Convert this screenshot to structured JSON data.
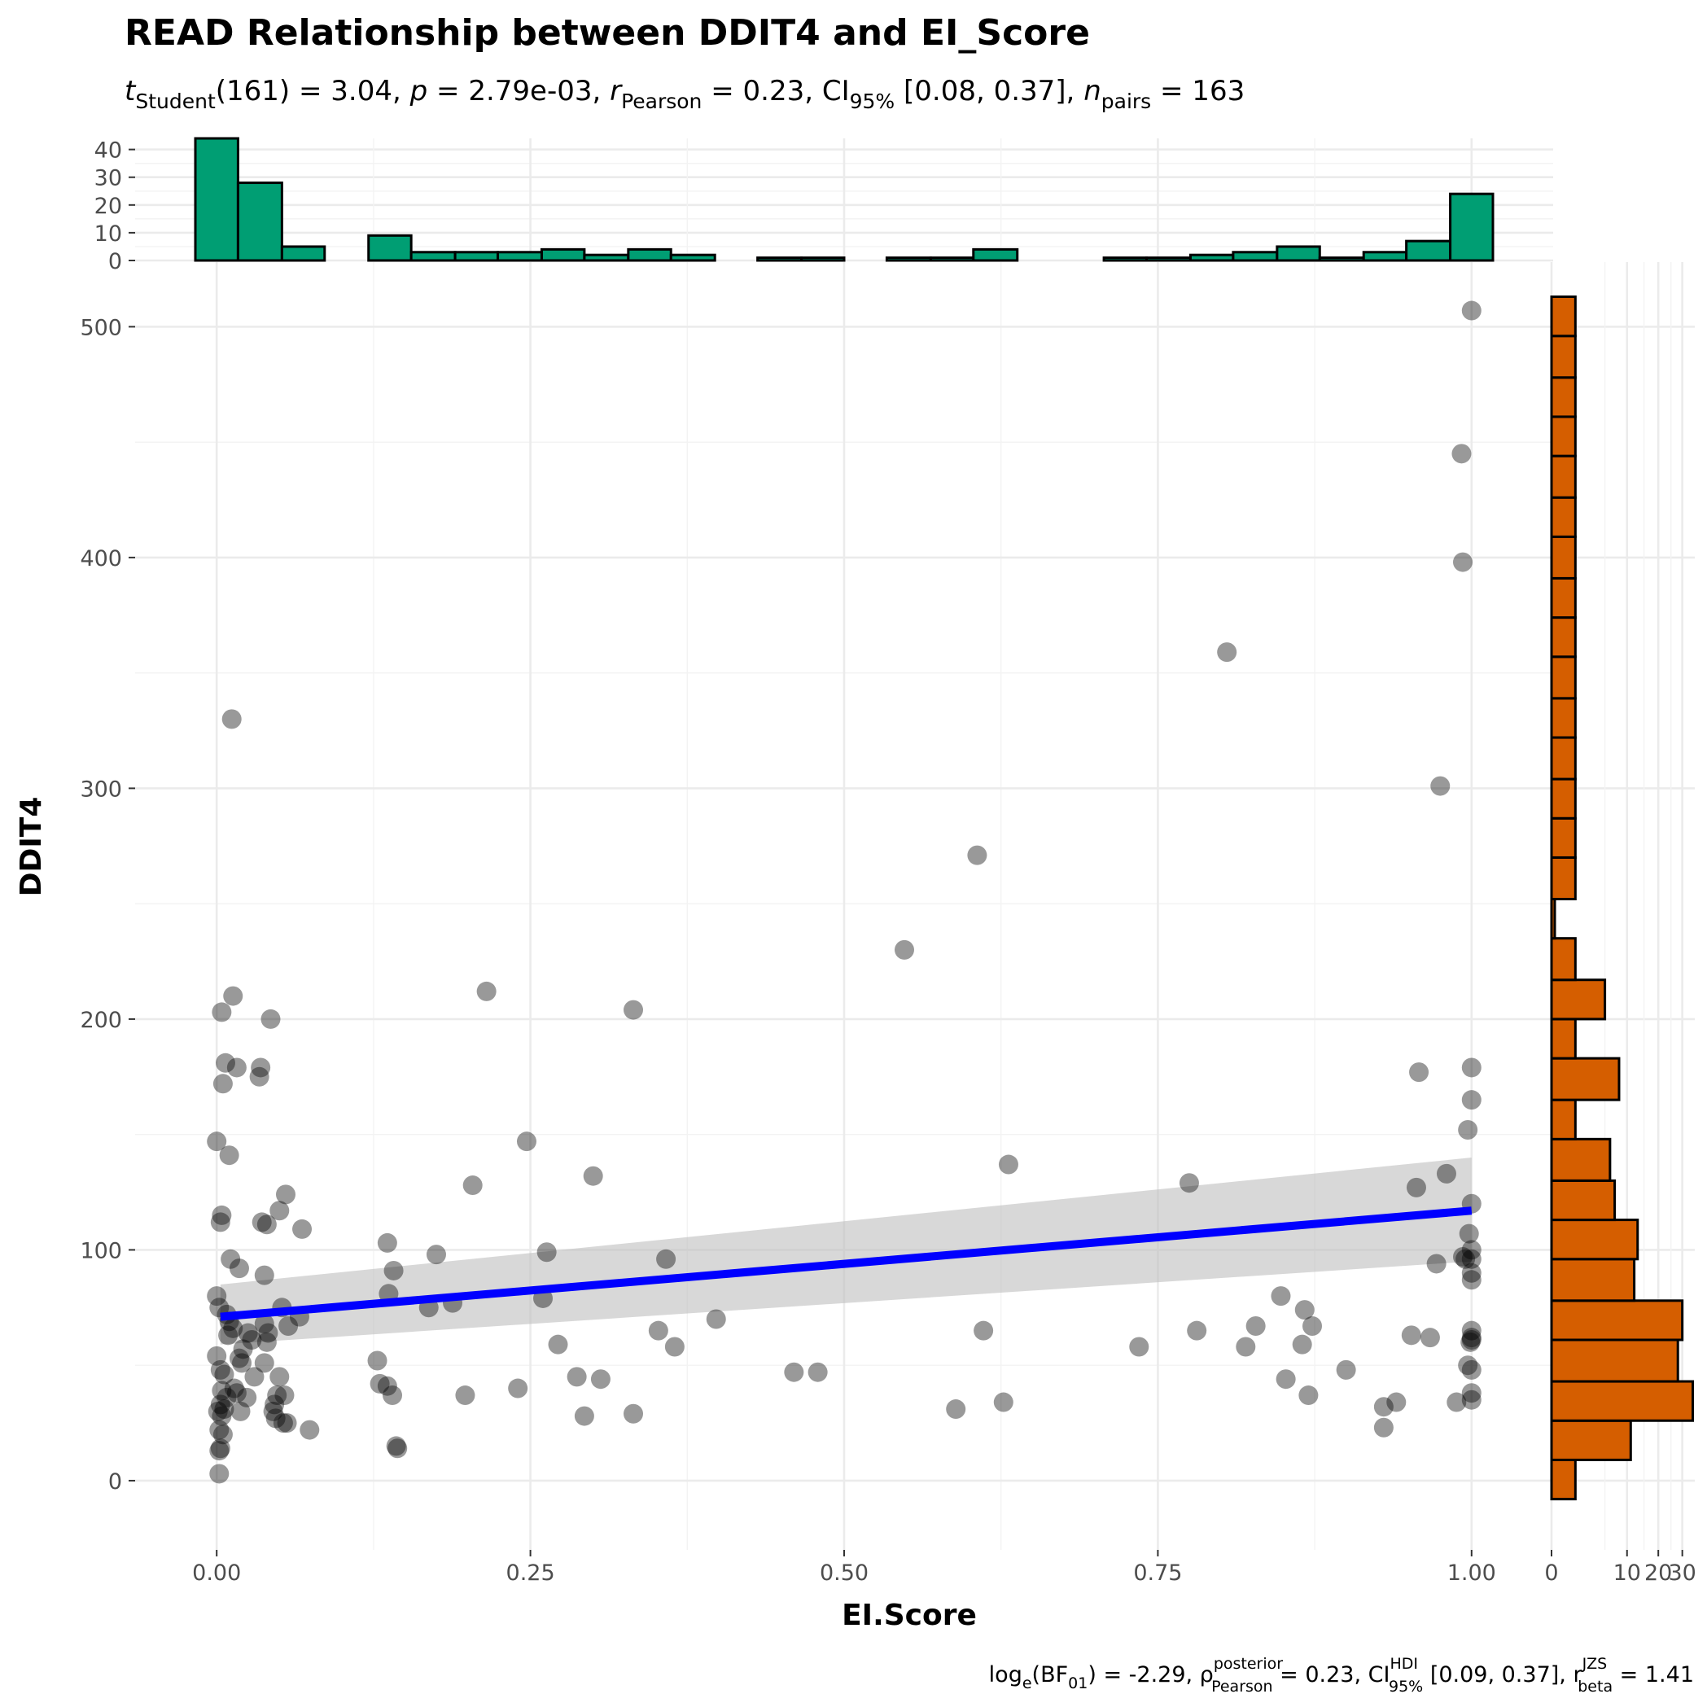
{
  "colors": {
    "points": "#000000",
    "fit_line": "#0000ff",
    "ci_band": "#bebebe",
    "x_hist": "#009e73",
    "y_hist": "#d55e00"
  },
  "chart_data": {
    "type": "scatter",
    "title": "READ Relationship between DDIT4 and EI_Score",
    "subtitle": {
      "t": "t",
      "t_sub": "Student",
      "t_val": "(161) = 3.04, ",
      "p": "p",
      "p_val": " = 2.79e-03, ",
      "r": "r",
      "r_sub": "Pearson",
      "r_val": " = 0.23, CI",
      "ci_sub": "95%",
      "ci_val": " [0.08, 0.37], ",
      "n": "n",
      "n_sub": "pairs",
      "n_val": " = 163"
    },
    "caption": {
      "a": "log",
      "a_sub": "e",
      "b": "(BF",
      "b_sub": "01",
      "c": ") = -2.29, ρ",
      "c_sup": "posterior",
      "c_sub": "Pearson",
      "d": " = 0.23, CI",
      "d_sup": "HDI",
      "d_sub": "95%",
      "e": " [0.09, 0.37], r",
      "e_sup": "JZS",
      "e_sub": "beta",
      "f": " = 1.41"
    },
    "xlabel": "EI.Score",
    "ylabel": "DDIT4",
    "xlim": [
      -0.065,
      1.065
    ],
    "ylim": [
      -30,
      528
    ],
    "x_ticks": [
      0,
      0.25,
      0.5,
      0.75,
      1
    ],
    "x_tick_labels": [
      "0.00",
      "0.25",
      "0.50",
      "0.75",
      "1.00"
    ],
    "y_ticks": [
      0,
      100,
      200,
      300,
      400,
      500
    ],
    "y_tick_labels": [
      "0",
      "100",
      "200",
      "300",
      "400",
      "500"
    ],
    "grid": true,
    "regression": {
      "x0": 0.003,
      "y0": 71,
      "x1": 1.0,
      "y1": 117,
      "ci_lower_start": 59,
      "ci_upper_start": 85,
      "ci_lower_end": 95,
      "ci_upper_end": 140
    },
    "points": [
      [
        0.0,
        147
      ],
      [
        0.004,
        115
      ],
      [
        0.003,
        112
      ],
      [
        0.004,
        203
      ],
      [
        0.005,
        172
      ],
      [
        0.007,
        181
      ],
      [
        0.01,
        141
      ],
      [
        0.012,
        330
      ],
      [
        0.013,
        210
      ],
      [
        0.016,
        179
      ],
      [
        0.011,
        96
      ],
      [
        0.018,
        92
      ],
      [
        0.0,
        80
      ],
      [
        0.002,
        75
      ],
      [
        0.008,
        72
      ],
      [
        0.01,
        69
      ],
      [
        0.013,
        66
      ],
      [
        0.009,
        63
      ],
      [
        0.0,
        54
      ],
      [
        0.003,
        48
      ],
      [
        0.006,
        46
      ],
      [
        0.004,
        39
      ],
      [
        0.008,
        36
      ],
      [
        0.003,
        33
      ],
      [
        0.001,
        30
      ],
      [
        0.004,
        28
      ],
      [
        0.006,
        31
      ],
      [
        0.002,
        22
      ],
      [
        0.005,
        20
      ],
      [
        0.003,
        14
      ],
      [
        0.002,
        13
      ],
      [
        0.002,
        3
      ],
      [
        0.016,
        38
      ],
      [
        0.019,
        30
      ],
      [
        0.014,
        40
      ],
      [
        0.018,
        53
      ],
      [
        0.021,
        57
      ],
      [
        0.025,
        64
      ],
      [
        0.028,
        61
      ],
      [
        0.03,
        45
      ],
      [
        0.024,
        36
      ],
      [
        0.02,
        51
      ],
      [
        0.034,
        175
      ],
      [
        0.035,
        179
      ],
      [
        0.036,
        112
      ],
      [
        0.04,
        111
      ],
      [
        0.038,
        89
      ],
      [
        0.043,
        200
      ],
      [
        0.038,
        68
      ],
      [
        0.041,
        64
      ],
      [
        0.04,
        60
      ],
      [
        0.038,
        51
      ],
      [
        0.045,
        30
      ],
      [
        0.047,
        27
      ],
      [
        0.046,
        33
      ],
      [
        0.048,
        37
      ],
      [
        0.05,
        117
      ],
      [
        0.052,
        75
      ],
      [
        0.05,
        45
      ],
      [
        0.054,
        37
      ],
      [
        0.053,
        25
      ],
      [
        0.055,
        124
      ],
      [
        0.057,
        67
      ],
      [
        0.056,
        25
      ],
      [
        0.066,
        71
      ],
      [
        0.068,
        109
      ],
      [
        0.074,
        22
      ],
      [
        0.128,
        52
      ],
      [
        0.13,
        42
      ],
      [
        0.136,
        103
      ],
      [
        0.137,
        81
      ],
      [
        0.136,
        41
      ],
      [
        0.14,
        37
      ],
      [
        0.141,
        91
      ],
      [
        0.143,
        15
      ],
      [
        0.144,
        14
      ],
      [
        0.169,
        75
      ],
      [
        0.175,
        98
      ],
      [
        0.188,
        77
      ],
      [
        0.198,
        37
      ],
      [
        0.204,
        128
      ],
      [
        0.215,
        212
      ],
      [
        0.24,
        40
      ],
      [
        0.247,
        147
      ],
      [
        0.26,
        79
      ],
      [
        0.263,
        99
      ],
      [
        0.272,
        59
      ],
      [
        0.287,
        45
      ],
      [
        0.293,
        28
      ],
      [
        0.3,
        132
      ],
      [
        0.306,
        44
      ],
      [
        0.332,
        204
      ],
      [
        0.332,
        29
      ],
      [
        0.352,
        65
      ],
      [
        0.358,
        96
      ],
      [
        0.365,
        58
      ],
      [
        0.398,
        70
      ],
      [
        0.46,
        47
      ],
      [
        0.479,
        47
      ],
      [
        0.548,
        230
      ],
      [
        0.589,
        31
      ],
      [
        0.606,
        271
      ],
      [
        0.611,
        65
      ],
      [
        0.627,
        34
      ],
      [
        0.631,
        137
      ],
      [
        0.735,
        58
      ],
      [
        0.775,
        129
      ],
      [
        0.781,
        65
      ],
      [
        0.805,
        359
      ],
      [
        0.82,
        58
      ],
      [
        0.828,
        67
      ],
      [
        0.848,
        80
      ],
      [
        0.852,
        44
      ],
      [
        0.865,
        59
      ],
      [
        0.867,
        74
      ],
      [
        0.87,
        37
      ],
      [
        0.873,
        67
      ],
      [
        0.9,
        48
      ],
      [
        0.93,
        32
      ],
      [
        0.93,
        23
      ],
      [
        0.94,
        34
      ],
      [
        0.952,
        63
      ],
      [
        0.956,
        127
      ],
      [
        0.958,
        177
      ],
      [
        0.967,
        62
      ],
      [
        0.972,
        94
      ],
      [
        0.975,
        301
      ],
      [
        0.98,
        133
      ],
      [
        0.988,
        34
      ],
      [
        0.992,
        445
      ],
      [
        0.993,
        398
      ],
      [
        0.993,
        97
      ],
      [
        0.995,
        96
      ],
      [
        0.997,
        50
      ],
      [
        0.997,
        152
      ],
      [
        0.999,
        60
      ],
      [
        0.998,
        107
      ],
      [
        1.0,
        100
      ],
      [
        1.0,
        120
      ],
      [
        1.0,
        179
      ],
      [
        1.0,
        165
      ],
      [
        1.0,
        96
      ],
      [
        1.0,
        90
      ],
      [
        1.0,
        87
      ],
      [
        1.0,
        65
      ],
      [
        1.0,
        62
      ],
      [
        1.0,
        61
      ],
      [
        1.0,
        48
      ],
      [
        1.0,
        38
      ],
      [
        1.0,
        35
      ],
      [
        1.0,
        507
      ]
    ],
    "x_hist": {
      "y_ticks": [
        0,
        10,
        20,
        30,
        40
      ],
      "y_tick_labels": [
        "0",
        "10",
        "20",
        "30",
        "40"
      ],
      "ylim": [
        0,
        44
      ],
      "bins": [
        [
          -0.017,
          0.017,
          44
        ],
        [
          0.017,
          0.052,
          28
        ],
        [
          0.052,
          0.086,
          5
        ],
        [
          0.086,
          0.121,
          0
        ],
        [
          0.121,
          0.155,
          9
        ],
        [
          0.155,
          0.19,
          3
        ],
        [
          0.19,
          0.224,
          3
        ],
        [
          0.224,
          0.259,
          3
        ],
        [
          0.259,
          0.293,
          4
        ],
        [
          0.293,
          0.328,
          2
        ],
        [
          0.328,
          0.362,
          4
        ],
        [
          0.362,
          0.397,
          2
        ],
        [
          0.397,
          0.431,
          0
        ],
        [
          0.431,
          0.466,
          1
        ],
        [
          0.466,
          0.5,
          1
        ],
        [
          0.5,
          0.534,
          0
        ],
        [
          0.534,
          0.569,
          1
        ],
        [
          0.569,
          0.603,
          1
        ],
        [
          0.603,
          0.638,
          4
        ],
        [
          0.638,
          0.672,
          0
        ],
        [
          0.672,
          0.707,
          0
        ],
        [
          0.707,
          0.741,
          1
        ],
        [
          0.741,
          0.776,
          1
        ],
        [
          0.776,
          0.81,
          2
        ],
        [
          0.81,
          0.845,
          3
        ],
        [
          0.845,
          0.879,
          5
        ],
        [
          0.879,
          0.914,
          1
        ],
        [
          0.914,
          0.948,
          3
        ],
        [
          0.948,
          0.983,
          7
        ],
        [
          0.983,
          1.017,
          24
        ]
      ]
    },
    "y_hist": {
      "x_ticks": [
        0,
        10,
        20,
        30
      ],
      "x_tick_labels": [
        "0",
        "10",
        "20",
        "30"
      ],
      "xlim": [
        0,
        36
      ],
      "bins": [
        [
          -8,
          9,
          1
        ],
        [
          9,
          26,
          11
        ],
        [
          26,
          43,
          35
        ],
        [
          43,
          61,
          28
        ],
        [
          61,
          78,
          30
        ],
        [
          78,
          96,
          12
        ],
        [
          96,
          113,
          13
        ],
        [
          113,
          130,
          7
        ],
        [
          130,
          148,
          6
        ],
        [
          148,
          165,
          1
        ],
        [
          165,
          183,
          8
        ],
        [
          183,
          200,
          1
        ],
        [
          200,
          217,
          5
        ],
        [
          217,
          235,
          1
        ],
        [
          235,
          252,
          0
        ],
        [
          252,
          270,
          1
        ],
        [
          270,
          287,
          1
        ],
        [
          287,
          304,
          1
        ],
        [
          304,
          322,
          1
        ],
        [
          322,
          339,
          1
        ],
        [
          339,
          357,
          1
        ],
        [
          357,
          374,
          1
        ],
        [
          374,
          391,
          1
        ],
        [
          391,
          409,
          1
        ],
        [
          409,
          426,
          1
        ],
        [
          426,
          444,
          1
        ],
        [
          444,
          461,
          1
        ],
        [
          461,
          478,
          1
        ],
        [
          478,
          496,
          1
        ],
        [
          496,
          513,
          1
        ]
      ]
    }
  }
}
